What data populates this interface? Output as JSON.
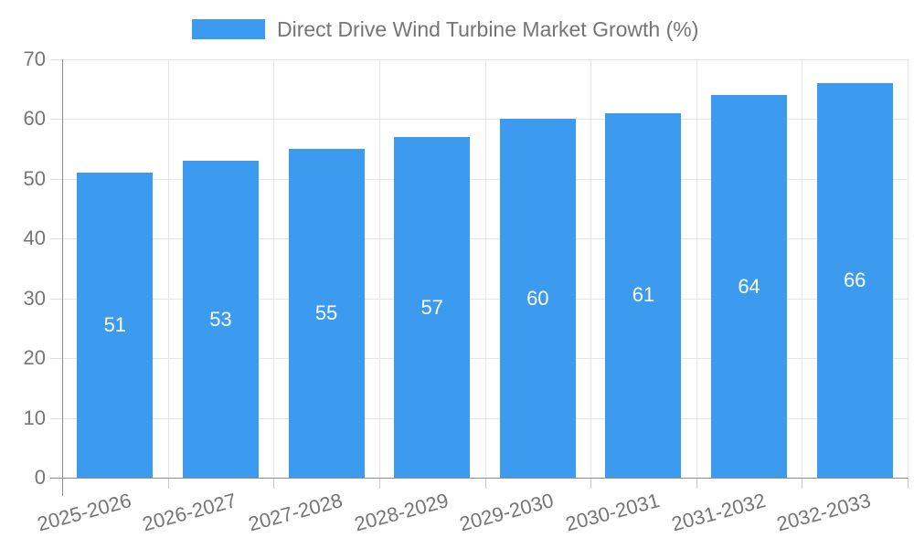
{
  "legend": {
    "label": "Direct Drive Wind Turbine Market Growth (%)"
  },
  "chart_data": {
    "type": "bar",
    "title": "Direct Drive Wind Turbine Market Growth (%)",
    "categories": [
      "2025-2026",
      "2026-2027",
      "2027-2028",
      "2028-2029",
      "2029-2030",
      "2030-2031",
      "2031-2032",
      "2032-2033"
    ],
    "values": [
      51,
      53,
      55,
      57,
      60,
      61,
      64,
      66
    ],
    "xlabel": "",
    "ylabel": "",
    "ylim": [
      0,
      70
    ],
    "yticks": [
      0,
      10,
      20,
      30,
      40,
      50,
      60,
      70
    ],
    "grid": true,
    "legend_position": "top",
    "value_labels": "inside-center",
    "colors": {
      "bar": "#3d9bef",
      "bar_value_text": "#ffffff",
      "axis_text": "#757575",
      "grid_line": "#e6e6e6",
      "axis_line": "#8c8c8c"
    }
  }
}
